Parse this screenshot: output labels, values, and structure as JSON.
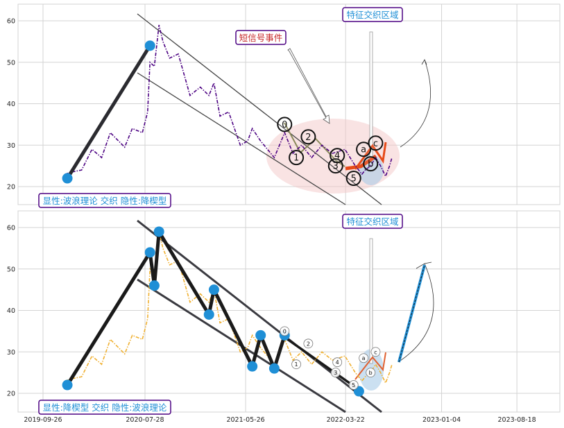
{
  "chart_data": [
    {
      "type": "line",
      "title": "",
      "ylim": [
        15,
        64
      ],
      "y_ticks": [
        "20",
        "30",
        "40",
        "50",
        "60"
      ],
      "grid": true,
      "price_color": "#4b0082",
      "price_series": [
        [
          "2019-12-01",
          23
        ],
        [
          "2019-12-20",
          23.5
        ],
        [
          "2020-01-20",
          24
        ],
        [
          "2020-02-20",
          29
        ],
        [
          "2020-03-20",
          27
        ],
        [
          "2020-04-15",
          33
        ],
        [
          "2020-05-10",
          31
        ],
        [
          "2020-05-28",
          29.5
        ],
        [
          "2020-06-20",
          34
        ],
        [
          "2020-07-20",
          33
        ],
        [
          "2020-08-05",
          38
        ],
        [
          "2020-08-12",
          50
        ],
        [
          "2020-08-25",
          49
        ],
        [
          "2020-09-08",
          59
        ],
        [
          "2020-09-20",
          55
        ],
        [
          "2020-10-10",
          51
        ],
        [
          "2020-11-05",
          52
        ],
        [
          "2020-12-10",
          42
        ],
        [
          "2021-01-10",
          44
        ],
        [
          "2021-02-05",
          42
        ],
        [
          "2021-02-20",
          45
        ],
        [
          "2021-03-10",
          37
        ],
        [
          "2021-04-05",
          38
        ],
        [
          "2021-05-10",
          30
        ],
        [
          "2021-06-01",
          31
        ],
        [
          "2021-06-15",
          34
        ],
        [
          "2021-07-10",
          31
        ],
        [
          "2021-08-20",
          27
        ],
        [
          "2021-09-20",
          33
        ],
        [
          "2021-10-15",
          28
        ],
        [
          "2021-11-10",
          30
        ],
        [
          "2021-12-10",
          27
        ],
        [
          "2022-01-10",
          30
        ],
        [
          "2022-02-10",
          28
        ],
        [
          "2022-03-20",
          29
        ],
        [
          "2022-04-20",
          25
        ],
        [
          "2022-05-10",
          23
        ],
        [
          "2022-05-20",
          24
        ],
        [
          "2022-06-05",
          25
        ],
        [
          "2022-06-20",
          27
        ],
        [
          "2022-07-05",
          25
        ],
        [
          "2022-07-20",
          22.5
        ],
        [
          "2022-08-01",
          25
        ],
        [
          "2022-08-08",
          27
        ]
      ],
      "wave_strokes": [
        {
          "color": "#2b2b30",
          "points": [
            [
              "2019-12-08",
              22
            ],
            [
              "2020-08-12",
              54
            ]
          ]
        }
      ],
      "wave_points": [
        {
          "x": "2019-12-08",
          "y": 22
        },
        {
          "x": "2020-08-12",
          "y": 54
        }
      ],
      "numbered_labels": [
        {
          "text": "0",
          "x": "2021-09-20",
          "y": 35
        },
        {
          "text": "1",
          "x": "2021-10-25",
          "y": 27
        },
        {
          "text": "2",
          "x": "2021-11-30",
          "y": 32
        },
        {
          "text": "3",
          "x": "2022-02-20",
          "y": 25
        },
        {
          "text": "4",
          "x": "2022-02-25",
          "y": 27.5
        },
        {
          "text": "5",
          "x": "2022-04-15",
          "y": 22
        },
        {
          "text": "a",
          "x": "2022-05-15",
          "y": 29
        },
        {
          "text": "b",
          "x": "2022-06-05",
          "y": 25.5
        },
        {
          "text": "c",
          "x": "2022-06-20",
          "y": 30.5
        }
      ],
      "event_label": "短信号事件",
      "zone_label": "特征交织区域",
      "corner_label": "显性:波浪理论 交织 隐性:降楔型"
    },
    {
      "type": "line",
      "title": "",
      "ylim": [
        15,
        64
      ],
      "y_ticks": [
        "20",
        "30",
        "40",
        "50",
        "60"
      ],
      "x_ticks": [
        "2019-09-26",
        "2020-07-28",
        "2021-05-26",
        "2022-03-22",
        "2023-01-04",
        "2023-08-18"
      ],
      "grid": true,
      "price_color": "#f0b030",
      "price_series": [
        [
          "2019-12-01",
          23
        ],
        [
          "2019-12-20",
          23.5
        ],
        [
          "2020-01-20",
          24
        ],
        [
          "2020-02-20",
          29
        ],
        [
          "2020-03-20",
          27
        ],
        [
          "2020-04-15",
          33
        ],
        [
          "2020-05-10",
          31
        ],
        [
          "2020-05-28",
          29.5
        ],
        [
          "2020-06-20",
          34
        ],
        [
          "2020-07-20",
          33
        ],
        [
          "2020-08-05",
          38
        ],
        [
          "2020-08-12",
          50
        ],
        [
          "2020-08-25",
          49
        ],
        [
          "2020-09-08",
          59
        ],
        [
          "2020-09-20",
          55
        ],
        [
          "2020-10-10",
          51
        ],
        [
          "2020-11-05",
          52
        ],
        [
          "2020-12-10",
          42
        ],
        [
          "2021-01-10",
          44
        ],
        [
          "2021-02-05",
          42
        ],
        [
          "2021-02-20",
          45
        ],
        [
          "2021-03-10",
          37
        ],
        [
          "2021-04-05",
          38
        ],
        [
          "2021-05-10",
          30
        ],
        [
          "2021-06-01",
          31
        ],
        [
          "2021-06-15",
          34
        ],
        [
          "2021-07-10",
          31
        ],
        [
          "2021-08-20",
          27
        ],
        [
          "2021-09-20",
          33
        ],
        [
          "2021-10-15",
          28
        ],
        [
          "2021-11-10",
          30
        ],
        [
          "2021-12-10",
          27
        ],
        [
          "2022-01-10",
          30
        ],
        [
          "2022-02-10",
          28
        ],
        [
          "2022-03-20",
          29
        ],
        [
          "2022-04-20",
          25
        ],
        [
          "2022-05-10",
          23
        ],
        [
          "2022-05-20",
          24
        ],
        [
          "2022-06-05",
          25
        ],
        [
          "2022-06-20",
          27
        ],
        [
          "2022-07-05",
          25
        ],
        [
          "2022-07-20",
          22.5
        ],
        [
          "2022-08-01",
          25
        ],
        [
          "2022-08-08",
          27
        ]
      ],
      "wave_strokes": [
        {
          "color": "#1a1a1a",
          "points": [
            [
              "2019-12-08",
              22
            ],
            [
              "2020-08-12",
              54
            ],
            [
              "2020-08-25",
              46
            ],
            [
              "2020-09-08",
              59
            ],
            [
              "2021-02-05",
              39
            ],
            [
              "2021-02-20",
              45
            ],
            [
              "2021-06-15",
              26.5
            ],
            [
              "2021-07-10",
              34
            ],
            [
              "2021-08-20",
              26
            ],
            [
              "2021-09-20",
              34
            ]
          ]
        }
      ],
      "wave_points": [
        {
          "x": "2019-12-08",
          "y": 22
        },
        {
          "x": "2020-08-12",
          "y": 54
        },
        {
          "x": "2020-08-25",
          "y": 46
        },
        {
          "x": "2020-09-08",
          "y": 59
        },
        {
          "x": "2021-02-05",
          "y": 39
        },
        {
          "x": "2021-02-20",
          "y": 45
        },
        {
          "x": "2021-06-15",
          "y": 26.5
        },
        {
          "x": "2021-07-10",
          "y": 34
        },
        {
          "x": "2021-08-20",
          "y": 26
        },
        {
          "x": "2021-09-20",
          "y": 34
        },
        {
          "x": "2022-05-01",
          "y": 20.5
        }
      ],
      "numbered_labels": [
        {
          "text": "0",
          "x": "2021-09-20",
          "y": 35
        },
        {
          "text": "1",
          "x": "2021-10-25",
          "y": 27
        },
        {
          "text": "2",
          "x": "2021-11-30",
          "y": 32
        },
        {
          "text": "3",
          "x": "2022-02-20",
          "y": 25
        },
        {
          "text": "4",
          "x": "2022-02-25",
          "y": 27.5
        },
        {
          "text": "5",
          "x": "2022-04-15",
          "y": 22
        },
        {
          "text": "a",
          "x": "2022-05-15",
          "y": 28.5
        },
        {
          "text": "b",
          "x": "2022-06-05",
          "y": 25
        },
        {
          "text": "c",
          "x": "2022-06-20",
          "y": 30
        }
      ],
      "zone_label": "特征交织区域",
      "corner_label": "显性:降楔型 交织 隐性:波浪理论"
    }
  ]
}
